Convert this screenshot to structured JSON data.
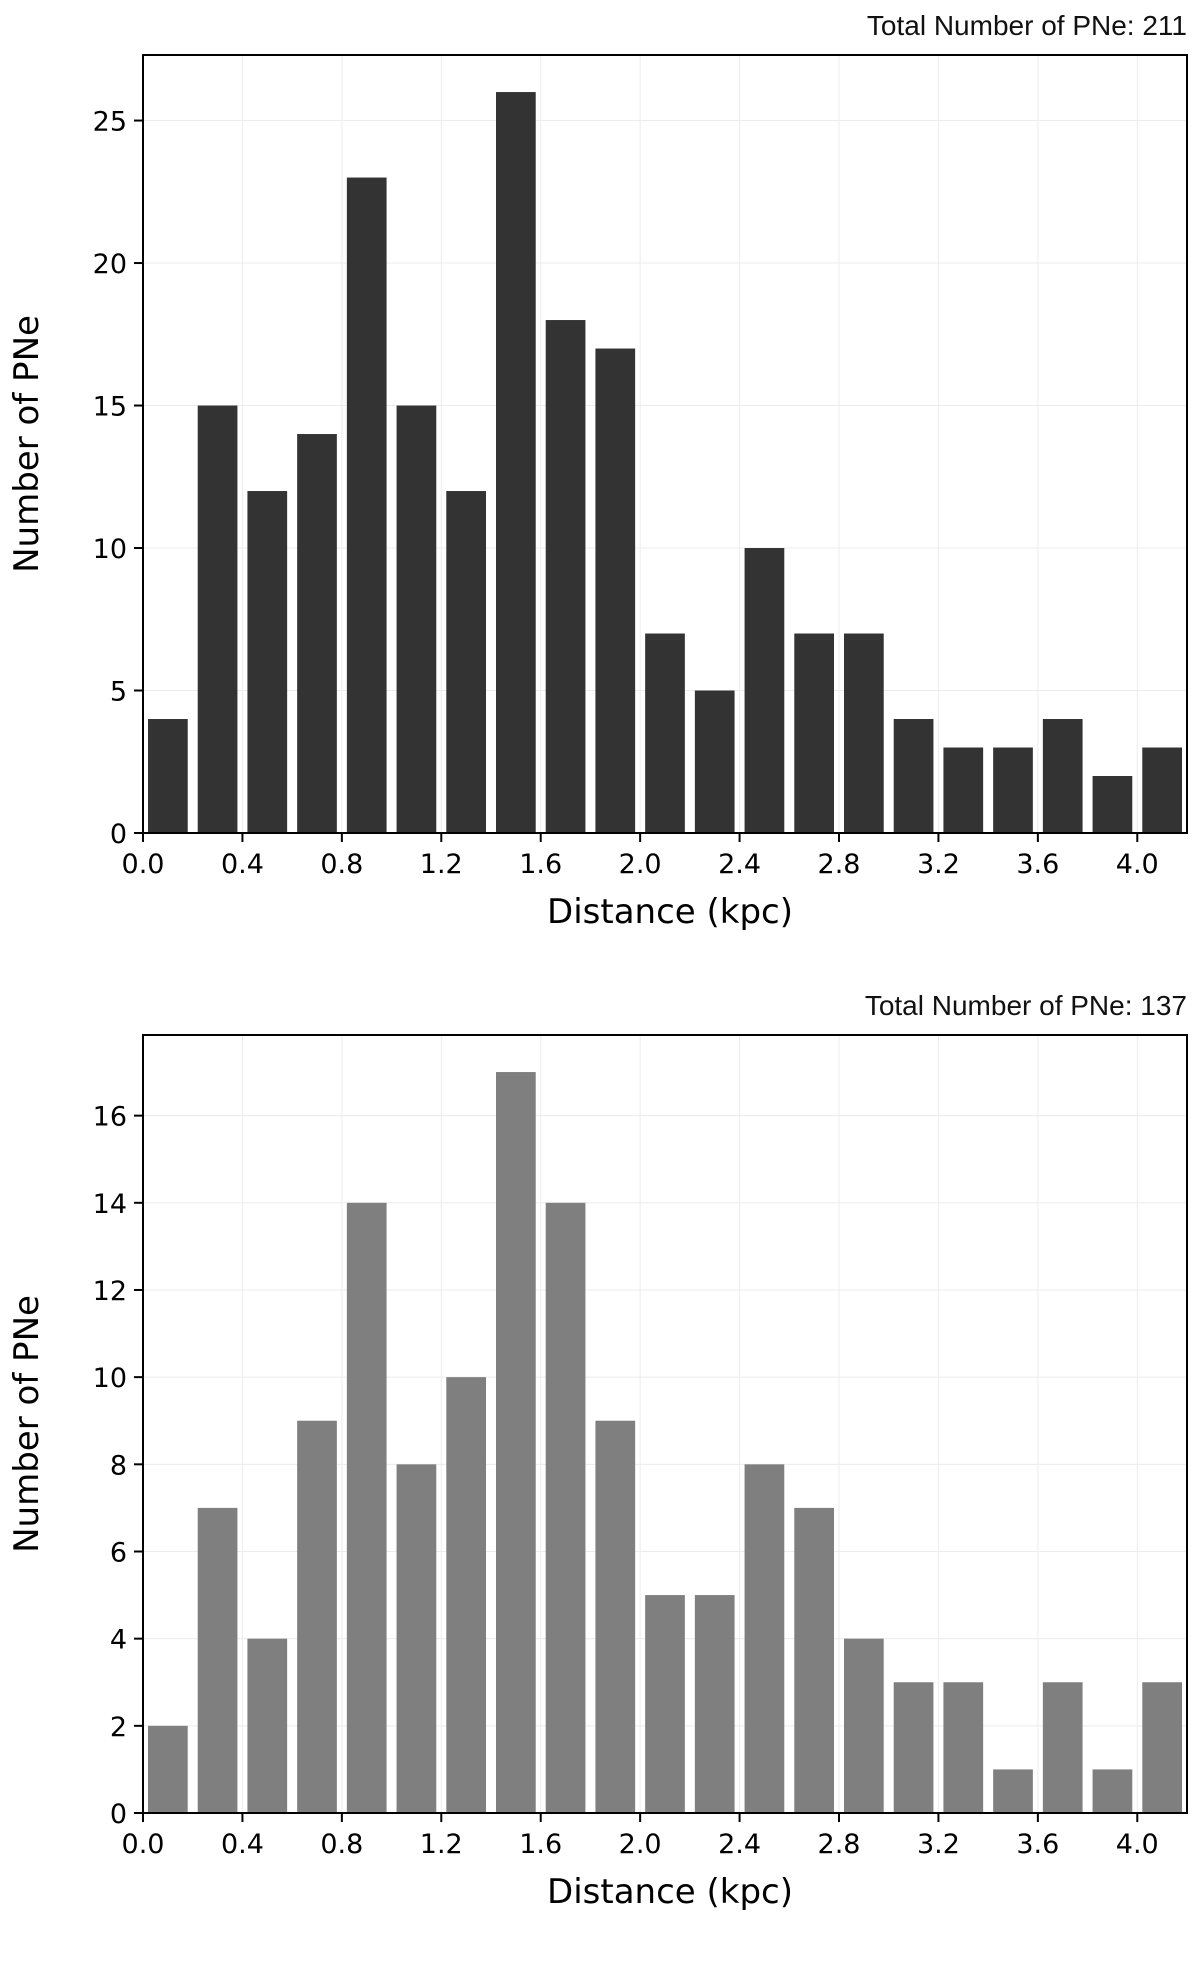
{
  "chart_data": [
    {
      "type": "bar",
      "title": "",
      "annotation": "Total Number of PNe: 211",
      "xlabel": "Distance (kpc)",
      "ylabel": "Number of PNe",
      "bin_starts": [
        0.0,
        0.2,
        0.4,
        0.6,
        0.8,
        1.0,
        1.2,
        1.4,
        1.6,
        1.8,
        2.0,
        2.2,
        2.4,
        2.6,
        2.8,
        3.0,
        3.2,
        3.4,
        3.6,
        3.8,
        4.0
      ],
      "bin_width": 0.2,
      "values": [
        4,
        15,
        12,
        14,
        23,
        15,
        12,
        26,
        18,
        17,
        7,
        5,
        10,
        7,
        7,
        4,
        3,
        3,
        4,
        2,
        3
      ],
      "xlim": [
        0.0,
        4.2
      ],
      "ylim": [
        0,
        27.3
      ],
      "xticks": [
        0.0,
        0.4,
        0.8,
        1.2,
        1.6,
        2.0,
        2.4,
        2.8,
        3.2,
        3.6,
        4.0
      ],
      "xtick_labels": [
        "0.0",
        "0.4",
        "0.8",
        "1.2",
        "1.6",
        "2.0",
        "2.4",
        "2.8",
        "3.2",
        "3.6",
        "4.0"
      ],
      "yticks": [
        0,
        5,
        10,
        15,
        20,
        25
      ],
      "ytick_labels": [
        "0",
        "5",
        "10",
        "15",
        "20",
        "25"
      ],
      "bar_color": "#333333",
      "grid": true
    },
    {
      "type": "bar",
      "title": "",
      "annotation": "Total Number of PNe: 137",
      "xlabel": "Distance (kpc)",
      "ylabel": "Number of PNe",
      "bin_starts": [
        0.0,
        0.2,
        0.4,
        0.6,
        0.8,
        1.0,
        1.2,
        1.4,
        1.6,
        1.8,
        2.0,
        2.2,
        2.4,
        2.6,
        2.8,
        3.0,
        3.2,
        3.4,
        3.6,
        3.8,
        4.0
      ],
      "bin_width": 0.2,
      "values": [
        2,
        7,
        4,
        9,
        14,
        8,
        10,
        17,
        14,
        9,
        5,
        5,
        8,
        7,
        4,
        3,
        3,
        1,
        3,
        1,
        3
      ],
      "xlim": [
        0.0,
        4.2
      ],
      "ylim": [
        0,
        17.85
      ],
      "xticks": [
        0.0,
        0.4,
        0.8,
        1.2,
        1.6,
        2.0,
        2.4,
        2.8,
        3.2,
        3.6,
        4.0
      ],
      "xtick_labels": [
        "0.0",
        "0.4",
        "0.8",
        "1.2",
        "1.6",
        "2.0",
        "2.4",
        "2.8",
        "3.2",
        "3.6",
        "4.0"
      ],
      "yticks": [
        0,
        2,
        4,
        6,
        8,
        10,
        12,
        14,
        16
      ],
      "ytick_labels": [
        "0",
        "2",
        "4",
        "6",
        "8",
        "10",
        "12",
        "14",
        "16"
      ],
      "bar_color": "#7f7f7f",
      "grid": true
    }
  ]
}
